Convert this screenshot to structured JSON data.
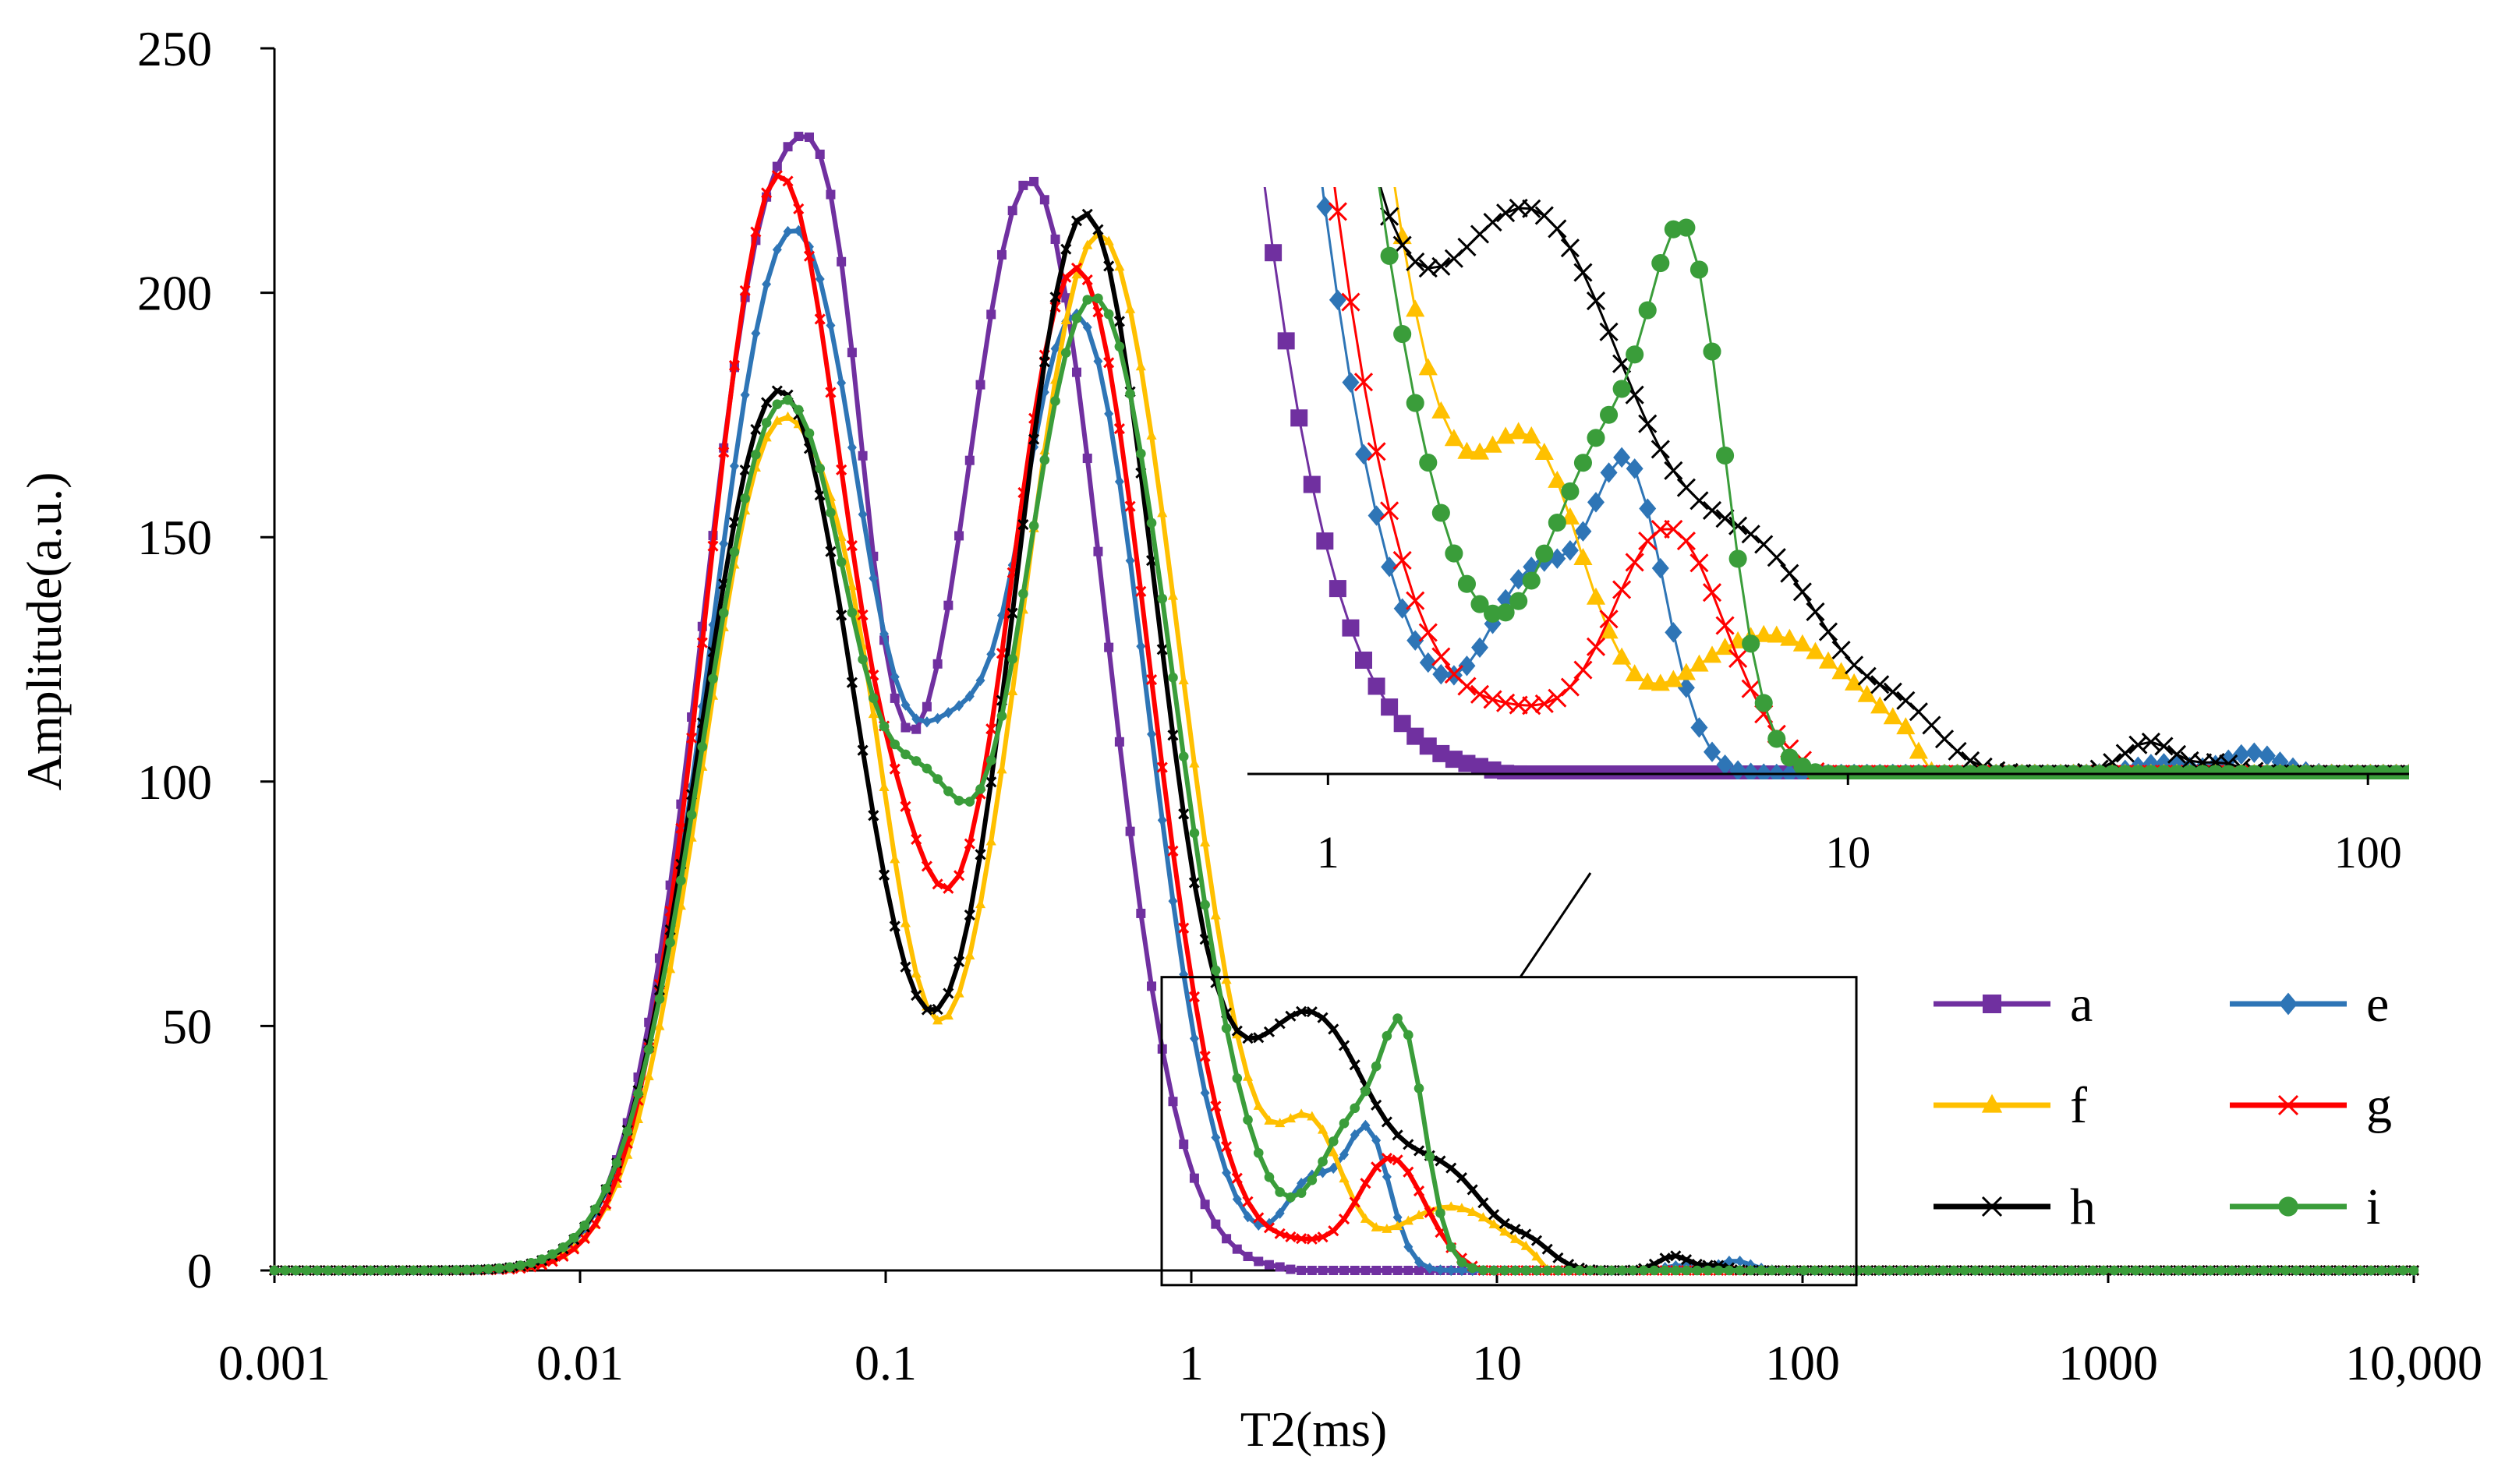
{
  "chart_data": {
    "type": "line",
    "xscale": "log",
    "xlabel": "T2(ms)",
    "ylabel": "Amplitude(a.u.)",
    "xlim": [
      0.001,
      10000
    ],
    "ylim": [
      0,
      250
    ],
    "xticks": [
      {
        "value": 0.001,
        "label": "0.001"
      },
      {
        "value": 0.01,
        "label": "0.01"
      },
      {
        "value": 0.1,
        "label": "0.1"
      },
      {
        "value": 1,
        "label": "1"
      },
      {
        "value": 10,
        "label": "10"
      },
      {
        "value": 100,
        "label": "100"
      },
      {
        "value": 1000,
        "label": "1000"
      },
      {
        "value": 10000,
        "label": "10,000"
      }
    ],
    "yticks": [
      {
        "value": 0,
        "label": "0"
      },
      {
        "value": 50,
        "label": "50"
      },
      {
        "value": 100,
        "label": "100"
      },
      {
        "value": 150,
        "label": "150"
      },
      {
        "value": 200,
        "label": "200"
      },
      {
        "value": 250,
        "label": "250"
      }
    ],
    "legend_position": "lower-right",
    "series": [
      {
        "name": "a",
        "color": "#7030A0",
        "marker": "square",
        "peaks": [
          {
            "x": 0.045,
            "y": 220,
            "w": 0.25
          },
          {
            "x": 0.3,
            "y": 222,
            "w": 0.24
          },
          {
            "x": 0.07,
            "y": 40,
            "w": 0.1
          }
        ],
        "cutoff": 2.0
      },
      {
        "name": "e",
        "color": "#2E75B6",
        "marker": "diamond",
        "peaks": [
          {
            "x": 0.05,
            "y": 213,
            "w": 0.27
          },
          {
            "x": 0.42,
            "y": 195,
            "w": 0.23
          },
          {
            "x": 0.16,
            "y": 40,
            "w": 0.12
          },
          {
            "x": 2.5,
            "y": 18,
            "w": 0.09
          },
          {
            "x": 3.8,
            "y": 27,
            "w": 0.07
          },
          {
            "x": 40,
            "y": 1,
            "w": 0.05
          },
          {
            "x": 60,
            "y": 2,
            "w": 0.05
          }
        ],
        "cutoff": 80
      },
      {
        "name": "f",
        "color": "#FFC000",
        "marker": "triangle",
        "peaks": [
          {
            "x": 0.045,
            "y": 172,
            "w": 0.25
          },
          {
            "x": 0.5,
            "y": 212,
            "w": 0.26
          },
          {
            "x": 0.085,
            "y": 30,
            "w": 0.12
          },
          {
            "x": 2.5,
            "y": 25,
            "w": 0.1
          },
          {
            "x": 7,
            "y": 13,
            "w": 0.18
          }
        ],
        "cutoff": 13
      },
      {
        "name": "g",
        "color": "#FF0000",
        "marker": "x",
        "peaks": [
          {
            "x": 0.045,
            "y": 224,
            "w": 0.24
          },
          {
            "x": 0.42,
            "y": 205,
            "w": 0.24
          },
          {
            "x": 0.12,
            "y": 30,
            "w": 0.12
          },
          {
            "x": 4.5,
            "y": 23,
            "w": 0.11
          },
          {
            "x": 2.3,
            "y": 4,
            "w": 0.1
          },
          {
            "x": 55,
            "y": 2,
            "w": 0.05
          }
        ],
        "cutoff": 8
      },
      {
        "name": "h",
        "color": "#000000",
        "marker": "x",
        "peaks": [
          {
            "x": 0.045,
            "y": 180,
            "w": 0.26
          },
          {
            "x": 0.45,
            "y": 216,
            "w": 0.24
          },
          {
            "x": 2.5,
            "y": 51,
            "w": 0.2
          },
          {
            "x": 7,
            "y": 17,
            "w": 0.14
          },
          {
            "x": 13,
            "y": 4,
            "w": 0.07
          },
          {
            "x": 38,
            "y": 3,
            "w": 0.05
          },
          {
            "x": 52,
            "y": 1,
            "w": 0.04
          }
        ],
        "cutoff": 70
      },
      {
        "name": "i",
        "color": "#3A9D3A",
        "marker": "circle",
        "peaks": [
          {
            "x": 0.047,
            "y": 178,
            "w": 0.27
          },
          {
            "x": 0.48,
            "y": 199,
            "w": 0.26
          },
          {
            "x": 0.14,
            "y": 40,
            "w": 0.12
          },
          {
            "x": 3.5,
            "y": 30,
            "w": 0.12
          },
          {
            "x": 5.0,
            "y": 37,
            "w": 0.07
          },
          {
            "x": 11,
            "y": 1.5,
            "w": 0.06
          },
          {
            "x": 55,
            "y": 3,
            "w": 0.04
          }
        ],
        "cutoff": 8
      }
    ],
    "inset": {
      "xlim": [
        0.7,
        120
      ],
      "ylim": [
        0,
        55
      ],
      "source_box_xlim": [
        0.8,
        150
      ],
      "source_box_ylim": [
        -3,
        60
      ],
      "xticks": [
        {
          "value": 1,
          "label": "1"
        },
        {
          "value": 10,
          "label": "10"
        },
        {
          "value": 100,
          "label": "100"
        }
      ]
    }
  }
}
